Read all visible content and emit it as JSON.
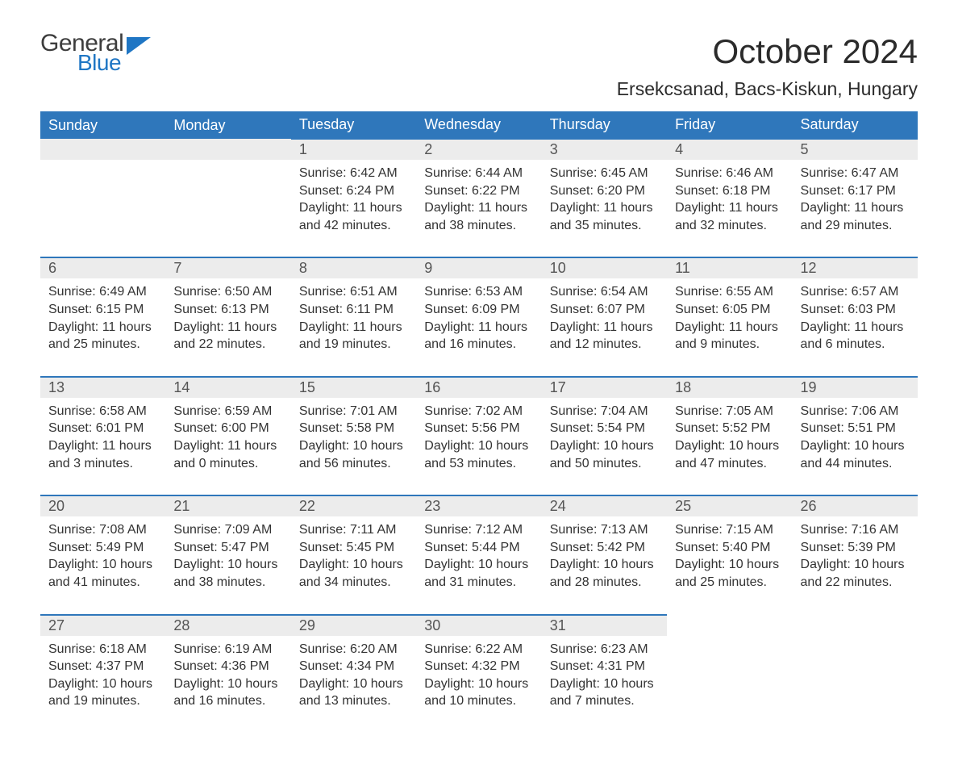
{
  "brand": {
    "line1": "General",
    "line2": "Blue",
    "flag_color": "#1f76c4",
    "text_dark": "#3d3d3d"
  },
  "header": {
    "title": "October 2024",
    "location": "Ersekcsanad, Bacs-Kiskun, Hungary"
  },
  "colors": {
    "header_bg": "#2f77bb",
    "header_text": "#ffffff",
    "daynum_bg": "#ececec",
    "daynum_text": "#555555",
    "border": "#2f77bb",
    "body_text": "#333333",
    "page_bg": "#ffffff"
  },
  "typography": {
    "title_fontsize": 42,
    "subtitle_fontsize": 23,
    "dayheader_fontsize": 18,
    "daynum_fontsize": 18,
    "body_fontsize": 16
  },
  "calendar": {
    "type": "table",
    "day_headers": [
      "Sunday",
      "Monday",
      "Tuesday",
      "Wednesday",
      "Thursday",
      "Friday",
      "Saturday"
    ],
    "leading_blanks": 2,
    "days": [
      {
        "n": 1,
        "sunrise": "6:42 AM",
        "sunset": "6:24 PM",
        "daylight": "11 hours and 42 minutes."
      },
      {
        "n": 2,
        "sunrise": "6:44 AM",
        "sunset": "6:22 PM",
        "daylight": "11 hours and 38 minutes."
      },
      {
        "n": 3,
        "sunrise": "6:45 AM",
        "sunset": "6:20 PM",
        "daylight": "11 hours and 35 minutes."
      },
      {
        "n": 4,
        "sunrise": "6:46 AM",
        "sunset": "6:18 PM",
        "daylight": "11 hours and 32 minutes."
      },
      {
        "n": 5,
        "sunrise": "6:47 AM",
        "sunset": "6:17 PM",
        "daylight": "11 hours and 29 minutes."
      },
      {
        "n": 6,
        "sunrise": "6:49 AM",
        "sunset": "6:15 PM",
        "daylight": "11 hours and 25 minutes."
      },
      {
        "n": 7,
        "sunrise": "6:50 AM",
        "sunset": "6:13 PM",
        "daylight": "11 hours and 22 minutes."
      },
      {
        "n": 8,
        "sunrise": "6:51 AM",
        "sunset": "6:11 PM",
        "daylight": "11 hours and 19 minutes."
      },
      {
        "n": 9,
        "sunrise": "6:53 AM",
        "sunset": "6:09 PM",
        "daylight": "11 hours and 16 minutes."
      },
      {
        "n": 10,
        "sunrise": "6:54 AM",
        "sunset": "6:07 PM",
        "daylight": "11 hours and 12 minutes."
      },
      {
        "n": 11,
        "sunrise": "6:55 AM",
        "sunset": "6:05 PM",
        "daylight": "11 hours and 9 minutes."
      },
      {
        "n": 12,
        "sunrise": "6:57 AM",
        "sunset": "6:03 PM",
        "daylight": "11 hours and 6 minutes."
      },
      {
        "n": 13,
        "sunrise": "6:58 AM",
        "sunset": "6:01 PM",
        "daylight": "11 hours and 3 minutes."
      },
      {
        "n": 14,
        "sunrise": "6:59 AM",
        "sunset": "6:00 PM",
        "daylight": "11 hours and 0 minutes."
      },
      {
        "n": 15,
        "sunrise": "7:01 AM",
        "sunset": "5:58 PM",
        "daylight": "10 hours and 56 minutes."
      },
      {
        "n": 16,
        "sunrise": "7:02 AM",
        "sunset": "5:56 PM",
        "daylight": "10 hours and 53 minutes."
      },
      {
        "n": 17,
        "sunrise": "7:04 AM",
        "sunset": "5:54 PM",
        "daylight": "10 hours and 50 minutes."
      },
      {
        "n": 18,
        "sunrise": "7:05 AM",
        "sunset": "5:52 PM",
        "daylight": "10 hours and 47 minutes."
      },
      {
        "n": 19,
        "sunrise": "7:06 AM",
        "sunset": "5:51 PM",
        "daylight": "10 hours and 44 minutes."
      },
      {
        "n": 20,
        "sunrise": "7:08 AM",
        "sunset": "5:49 PM",
        "daylight": "10 hours and 41 minutes."
      },
      {
        "n": 21,
        "sunrise": "7:09 AM",
        "sunset": "5:47 PM",
        "daylight": "10 hours and 38 minutes."
      },
      {
        "n": 22,
        "sunrise": "7:11 AM",
        "sunset": "5:45 PM",
        "daylight": "10 hours and 34 minutes."
      },
      {
        "n": 23,
        "sunrise": "7:12 AM",
        "sunset": "5:44 PM",
        "daylight": "10 hours and 31 minutes."
      },
      {
        "n": 24,
        "sunrise": "7:13 AM",
        "sunset": "5:42 PM",
        "daylight": "10 hours and 28 minutes."
      },
      {
        "n": 25,
        "sunrise": "7:15 AM",
        "sunset": "5:40 PM",
        "daylight": "10 hours and 25 minutes."
      },
      {
        "n": 26,
        "sunrise": "7:16 AM",
        "sunset": "5:39 PM",
        "daylight": "10 hours and 22 minutes."
      },
      {
        "n": 27,
        "sunrise": "6:18 AM",
        "sunset": "4:37 PM",
        "daylight": "10 hours and 19 minutes."
      },
      {
        "n": 28,
        "sunrise": "6:19 AM",
        "sunset": "4:36 PM",
        "daylight": "10 hours and 16 minutes."
      },
      {
        "n": 29,
        "sunrise": "6:20 AM",
        "sunset": "4:34 PM",
        "daylight": "10 hours and 13 minutes."
      },
      {
        "n": 30,
        "sunrise": "6:22 AM",
        "sunset": "4:32 PM",
        "daylight": "10 hours and 10 minutes."
      },
      {
        "n": 31,
        "sunrise": "6:23 AM",
        "sunset": "4:31 PM",
        "daylight": "10 hours and 7 minutes."
      }
    ],
    "labels": {
      "sunrise": "Sunrise:",
      "sunset": "Sunset:",
      "daylight": "Daylight:"
    }
  }
}
